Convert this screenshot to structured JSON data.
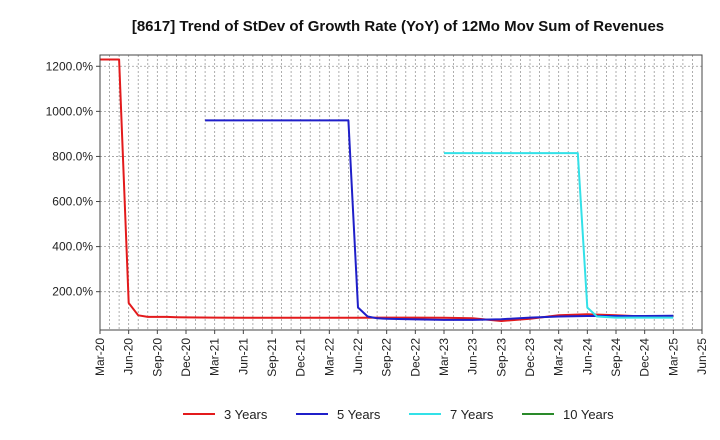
{
  "chart_data": {
    "type": "line",
    "title": "[8617]  Trend of StDev of Growth Rate (YoY) of 12Mo Mov Sum of Revenues",
    "xlabel": "",
    "ylabel": "",
    "x_ticks": [
      "Mar-20",
      "Jun-20",
      "Sep-20",
      "Dec-20",
      "Mar-21",
      "Jun-21",
      "Sep-21",
      "Dec-21",
      "Mar-22",
      "Jun-22",
      "Sep-22",
      "Dec-22",
      "Mar-23",
      "Jun-23",
      "Sep-23",
      "Dec-23",
      "Mar-24",
      "Jun-24",
      "Sep-24",
      "Dec-24",
      "Mar-25",
      "Jun-25"
    ],
    "y_ticks": [
      200,
      400,
      600,
      800,
      1000,
      1200
    ],
    "y_tick_labels": [
      "200.0%",
      "400.0%",
      "600.0%",
      "800.0%",
      "1000.0%",
      "1200.0%"
    ],
    "ylim": [
      30,
      1250
    ],
    "grid": true,
    "legend_position": "bottom",
    "series": [
      {
        "name": "3 Years",
        "color": "#e31a1c",
        "points": [
          [
            "2020-03",
            1230
          ],
          [
            "2020-04",
            1230
          ],
          [
            "2020-05",
            1230
          ],
          [
            "2020-06",
            150
          ],
          [
            "2020-07",
            95
          ],
          [
            "2020-08",
            88
          ],
          [
            "2020-09",
            88
          ],
          [
            "2020-10",
            88
          ],
          [
            "2020-11",
            87
          ],
          [
            "2020-12",
            86
          ],
          [
            "2021-03",
            85
          ],
          [
            "2021-06",
            84
          ],
          [
            "2021-09",
            84
          ],
          [
            "2021-12",
            84
          ],
          [
            "2022-03",
            84
          ],
          [
            "2022-06",
            84
          ],
          [
            "2022-09",
            85
          ],
          [
            "2022-12",
            85
          ],
          [
            "2023-03",
            84
          ],
          [
            "2023-06",
            82
          ],
          [
            "2023-09",
            70
          ],
          [
            "2023-12",
            80
          ],
          [
            "2024-03",
            95
          ],
          [
            "2024-06",
            100
          ],
          [
            "2024-09",
            95
          ],
          [
            "2024-12",
            90
          ],
          [
            "2025-03",
            92
          ]
        ]
      },
      {
        "name": "5 Years",
        "color": "#1f1fc9",
        "points": [
          [
            "2021-02",
            960
          ],
          [
            "2021-06",
            960
          ],
          [
            "2021-09",
            960
          ],
          [
            "2021-12",
            960
          ],
          [
            "2022-03",
            960
          ],
          [
            "2022-05",
            960
          ],
          [
            "2022-06",
            130
          ],
          [
            "2022-07",
            90
          ],
          [
            "2022-08",
            82
          ],
          [
            "2022-09",
            80
          ],
          [
            "2022-12",
            77
          ],
          [
            "2023-03",
            75
          ],
          [
            "2023-06",
            75
          ],
          [
            "2023-09",
            78
          ],
          [
            "2023-12",
            85
          ],
          [
            "2024-03",
            90
          ],
          [
            "2024-06",
            92
          ],
          [
            "2024-09",
            92
          ],
          [
            "2024-12",
            92
          ],
          [
            "2025-03",
            93
          ]
        ]
      },
      {
        "name": "7 Years",
        "color": "#33e1e8",
        "points": [
          [
            "2023-03",
            815
          ],
          [
            "2023-06",
            815
          ],
          [
            "2023-09",
            815
          ],
          [
            "2023-12",
            815
          ],
          [
            "2024-03",
            815
          ],
          [
            "2024-05",
            815
          ],
          [
            "2024-06",
            130
          ],
          [
            "2024-07",
            90
          ],
          [
            "2024-09",
            85
          ],
          [
            "2024-12",
            85
          ],
          [
            "2025-03",
            85
          ]
        ]
      },
      {
        "name": "10 Years",
        "color": "#2a8a2a",
        "points": []
      }
    ]
  }
}
